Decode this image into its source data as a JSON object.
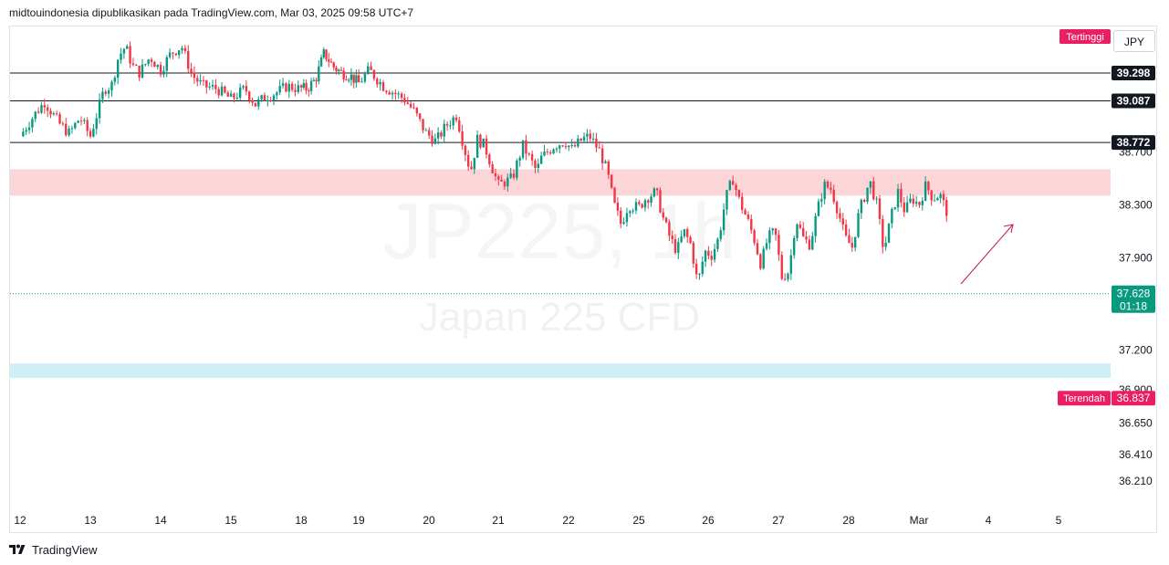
{
  "header": {
    "attribution": "midtouindonesia dipublikasikan pada TradingView.com, Mar 03, 2025 09:58 UTC+7"
  },
  "currency_button": "JPY",
  "footer": {
    "brand": "TradingView"
  },
  "watermark": {
    "symbol": "JP225, 1h",
    "description": "Japan 225 CFD"
  },
  "colors": {
    "up": "#089981",
    "down": "#f23645",
    "highlight": "#e91e63",
    "resistance_zone": "#fcd5d9",
    "support_zone": "#cdf0f7",
    "arrow": "#c2185b"
  },
  "chart_data": {
    "type": "candlestick",
    "symbol": "JP225",
    "interval": "1h",
    "yaxis": {
      "range": [
        36.05,
        39.6
      ],
      "ticks": [
        "38.700",
        "38.300",
        "37.900",
        "37.200",
        "36.900",
        "36.650",
        "36.410",
        "36.210"
      ],
      "tick_values": [
        38.7,
        38.3,
        37.9,
        37.2,
        36.9,
        36.65,
        36.41,
        36.21
      ]
    },
    "xaxis": {
      "ticks": [
        "12",
        "13",
        "14",
        "15",
        "18",
        "19",
        "20",
        "21",
        "22",
        "25",
        "26",
        "27",
        "28",
        "Mar",
        "4",
        "5"
      ]
    },
    "horizontal_lines": [
      {
        "label": "39.298",
        "value": 39.298
      },
      {
        "label": "39.087",
        "value": 39.087
      },
      {
        "label": "38.772",
        "value": 38.772
      }
    ],
    "zones": [
      {
        "type": "resistance",
        "from": 38.37,
        "to": 38.57
      },
      {
        "type": "support",
        "from": 36.99,
        "to": 37.1
      }
    ],
    "last_price": {
      "label": "37.628",
      "value": 37.628,
      "countdown": "01:18"
    },
    "high_marker": {
      "label": "Tertinggi"
    },
    "low_marker": {
      "label": "Terendah",
      "value_label": "36.837",
      "value": 36.837
    },
    "close_path": [
      [
        12.0,
        38.82
      ],
      [
        12.2,
        38.98
      ],
      [
        12.35,
        39.08
      ],
      [
        12.55,
        38.92
      ],
      [
        12.7,
        38.84
      ],
      [
        12.85,
        38.96
      ],
      [
        13.0,
        38.82
      ],
      [
        13.1,
        39.0
      ],
      [
        13.2,
        39.18
      ],
      [
        13.3,
        39.2
      ],
      [
        13.4,
        39.42
      ],
      [
        13.5,
        39.5
      ],
      [
        13.6,
        39.35
      ],
      [
        13.7,
        39.3
      ],
      [
        13.85,
        39.42
      ],
      [
        14.0,
        39.32
      ],
      [
        14.15,
        39.45
      ],
      [
        14.3,
        39.5
      ],
      [
        14.45,
        39.28
      ],
      [
        14.6,
        39.2
      ],
      [
        14.8,
        39.18
      ],
      [
        15.0,
        39.1
      ],
      [
        15.2,
        39.18
      ],
      [
        15.35,
        39.06
      ],
      [
        15.5,
        39.12
      ],
      [
        15.65,
        39.15
      ],
      [
        15.8,
        39.2
      ],
      [
        15.95,
        39.18
      ],
      [
        16.1,
        39.18
      ],
      [
        16.25,
        39.25
      ],
      [
        16.4,
        39.45
      ],
      [
        16.55,
        39.35
      ],
      [
        16.7,
        39.3
      ],
      [
        16.85,
        39.28
      ],
      [
        17.0,
        39.22
      ],
      [
        17.15,
        39.32
      ],
      [
        17.35,
        39.2
      ],
      [
        17.5,
        39.15
      ],
      [
        17.65,
        39.1
      ],
      [
        17.8,
        39.0
      ],
      [
        17.95,
        38.85
      ],
      [
        18.1,
        38.78
      ],
      [
        18.25,
        38.9
      ],
      [
        18.4,
        38.98
      ],
      [
        18.5,
        38.75
      ],
      [
        18.6,
        38.55
      ],
      [
        18.7,
        38.8
      ],
      [
        18.8,
        38.75
      ],
      [
        18.9,
        38.6
      ],
      [
        19.0,
        38.45
      ],
      [
        19.2,
        38.5
      ],
      [
        19.35,
        38.75
      ],
      [
        19.55,
        38.55
      ],
      [
        19.6,
        38.65
      ],
      [
        19.8,
        38.75
      ],
      [
        19.95,
        38.78
      ],
      [
        20.05,
        38.72
      ],
      [
        20.2,
        38.8
      ],
      [
        20.3,
        38.82
      ],
      [
        20.45,
        38.7
      ],
      [
        20.55,
        38.55
      ],
      [
        20.65,
        38.3
      ],
      [
        20.75,
        38.15
      ],
      [
        20.85,
        38.3
      ],
      [
        21.0,
        38.28
      ],
      [
        21.1,
        38.35
      ],
      [
        21.25,
        38.4
      ],
      [
        21.35,
        38.2
      ],
      [
        21.45,
        38.05
      ],
      [
        21.55,
        37.95
      ],
      [
        21.65,
        38.1
      ],
      [
        21.75,
        38.0
      ],
      [
        21.85,
        37.7
      ],
      [
        21.95,
        37.95
      ],
      [
        22.05,
        37.92
      ],
      [
        22.15,
        38.05
      ],
      [
        22.25,
        38.35
      ],
      [
        22.35,
        38.5
      ],
      [
        22.45,
        38.32
      ],
      [
        22.55,
        38.2
      ],
      [
        22.65,
        38.05
      ],
      [
        22.75,
        37.85
      ],
      [
        22.85,
        38.05
      ],
      [
        22.95,
        38.1
      ],
      [
        23.05,
        37.75
      ],
      [
        23.15,
        37.8
      ],
      [
        23.25,
        38.2
      ],
      [
        23.35,
        38.05
      ],
      [
        23.45,
        38.0
      ],
      [
        23.55,
        38.25
      ],
      [
        23.65,
        38.45
      ],
      [
        23.75,
        38.42
      ],
      [
        23.85,
        38.25
      ],
      [
        23.95,
        38.05
      ],
      [
        24.05,
        37.98
      ],
      [
        24.15,
        38.25
      ],
      [
        24.3,
        38.48
      ],
      [
        24.4,
        38.3
      ],
      [
        24.5,
        37.95
      ],
      [
        24.6,
        38.2
      ],
      [
        24.7,
        38.4
      ],
      [
        24.8,
        38.25
      ],
      [
        24.9,
        38.35
      ],
      [
        25.0,
        38.3
      ],
      [
        25.1,
        38.45
      ],
      [
        25.2,
        38.35
      ],
      [
        25.3,
        38.38
      ],
      [
        25.4,
        38.25
      ]
    ]
  }
}
